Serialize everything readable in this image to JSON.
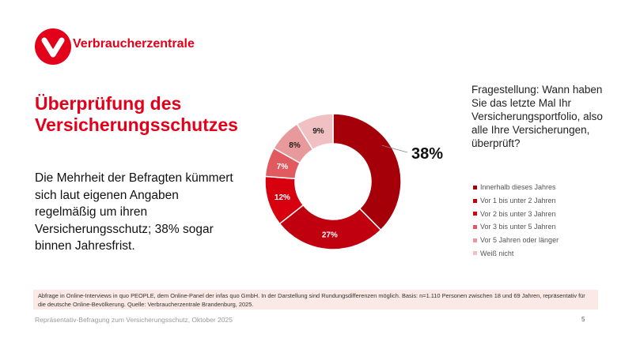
{
  "brand": {
    "name": "Verbraucherzentrale",
    "color": "#e2001a"
  },
  "title": [
    "Überprüfung des",
    "Versicherungsschutzes"
  ],
  "body": "Die Mehrheit der Befragten kümmert sich laut eigenen Angaben regelmäßig um ihren Versicherungsschutz; 38% sogar binnen Jahresfrist.",
  "question": "Fragestellung: Wann haben Sie das letzte Mal Ihr Versicherungsportfolio, also alle Ihre Versicherungen, überprüft?",
  "chart_data": {
    "type": "pie",
    "donut": true,
    "categories": [
      "Innerhalb dieses Jahres",
      "Vor 1 bis unter 2 Jahren",
      "Vor 2 bis unter 3 Jahren",
      "Vor 3 bis unter 5 Jahren",
      "Vor 5 Jahren oder länger",
      "Weiß nicht"
    ],
    "values": [
      38,
      27,
      12,
      7,
      8,
      9
    ],
    "labels": [
      "38%",
      "27%",
      "12%",
      "7%",
      "8%",
      "9%"
    ],
    "colors": [
      "#a50009",
      "#c0000f",
      "#d7000f",
      "#e05a60",
      "#e8999c",
      "#f0c0c2"
    ],
    "legend": "right"
  },
  "note": "Abfrage in Online-Interviews in quo PEOPLE, dem Online-Panel der infas quo GmbH. In der Darstellung sind Rundungsdifferenzen möglich. Basis: n=1.110 Personen zwischen 18 und 69 Jahren, repräsentativ für die deutsche Online-Bevölkerung. Quelle: Verbraucherzentrale Brandenburg, 2025.",
  "footer": "Repräsentativ-Befragung zum Versicherungsschutz, Oktober 2025",
  "page": "5"
}
